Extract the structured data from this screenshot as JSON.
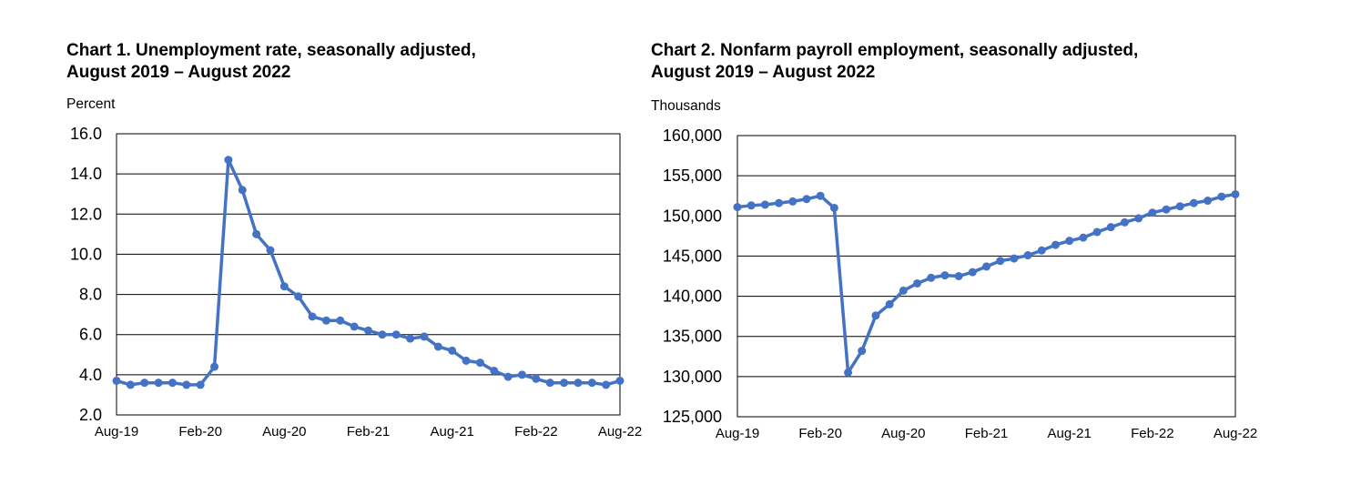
{
  "chart_data": [
    {
      "type": "line",
      "title_line1": "Chart 1. Unemployment rate, seasonally adjusted,",
      "title_line2": "August 2019 – August 2022",
      "ylabel": "Percent",
      "ylim": [
        2.0,
        16.0
      ],
      "yticks": [
        "2.0",
        "4.0",
        "6.0",
        "8.0",
        "10.0",
        "12.0",
        "14.0",
        "16.0"
      ],
      "xtick_labels": [
        "Aug-19",
        "Feb-20",
        "Aug-20",
        "Feb-21",
        "Aug-21",
        "Feb-22",
        "Aug-22"
      ],
      "grid": true,
      "color": "#4472C4",
      "x": [
        "Aug-19",
        "Sep-19",
        "Oct-19",
        "Nov-19",
        "Dec-19",
        "Jan-20",
        "Feb-20",
        "Mar-20",
        "Apr-20",
        "May-20",
        "Jun-20",
        "Jul-20",
        "Aug-20",
        "Sep-20",
        "Oct-20",
        "Nov-20",
        "Dec-20",
        "Jan-21",
        "Feb-21",
        "Mar-21",
        "Apr-21",
        "May-21",
        "Jun-21",
        "Jul-21",
        "Aug-21",
        "Sep-21",
        "Oct-21",
        "Nov-21",
        "Dec-21",
        "Jan-22",
        "Feb-22",
        "Mar-22",
        "Apr-22",
        "May-22",
        "Jun-22",
        "Jul-22",
        "Aug-22"
      ],
      "values": [
        3.7,
        3.5,
        3.6,
        3.6,
        3.6,
        3.5,
        3.5,
        4.4,
        14.7,
        13.2,
        11.0,
        10.2,
        8.4,
        7.9,
        6.9,
        6.7,
        6.7,
        6.4,
        6.2,
        6.0,
        6.0,
        5.8,
        5.9,
        5.4,
        5.2,
        4.7,
        4.6,
        4.2,
        3.9,
        4.0,
        3.8,
        3.6,
        3.6,
        3.6,
        3.6,
        3.5,
        3.7
      ]
    },
    {
      "type": "line",
      "title_line1": "Chart 2. Nonfarm payroll employment, seasonally adjusted,",
      "title_line2": "August 2019 – August 2022",
      "ylabel": "Thousands",
      "ylim": [
        125000,
        160000
      ],
      "yticks": [
        "125,000",
        "130,000",
        "135,000",
        "140,000",
        "145,000",
        "150,000",
        "155,000",
        "160,000"
      ],
      "xtick_labels": [
        "Aug-19",
        "Feb-20",
        "Aug-20",
        "Feb-21",
        "Aug-21",
        "Feb-22",
        "Aug-22"
      ],
      "grid": true,
      "color": "#4472C4",
      "x": [
        "Aug-19",
        "Sep-19",
        "Oct-19",
        "Nov-19",
        "Dec-19",
        "Jan-20",
        "Feb-20",
        "Mar-20",
        "Apr-20",
        "May-20",
        "Jun-20",
        "Jul-20",
        "Aug-20",
        "Sep-20",
        "Oct-20",
        "Nov-20",
        "Dec-20",
        "Jan-21",
        "Feb-21",
        "Mar-21",
        "Apr-21",
        "May-21",
        "Jun-21",
        "Jul-21",
        "Aug-21",
        "Sep-21",
        "Oct-21",
        "Nov-21",
        "Dec-21",
        "Jan-22",
        "Feb-22",
        "Mar-22",
        "Apr-22",
        "May-22",
        "Jun-22",
        "Jul-22",
        "Aug-22"
      ],
      "values": [
        151100,
        151300,
        151400,
        151600,
        151800,
        152100,
        152500,
        151000,
        130500,
        133200,
        137600,
        139000,
        140700,
        141600,
        142300,
        142600,
        142500,
        143000,
        143700,
        144400,
        144700,
        145100,
        145700,
        146400,
        146900,
        147300,
        148000,
        148600,
        149200,
        149700,
        150400,
        150800,
        151200,
        151600,
        151900,
        152400,
        152700
      ]
    }
  ]
}
